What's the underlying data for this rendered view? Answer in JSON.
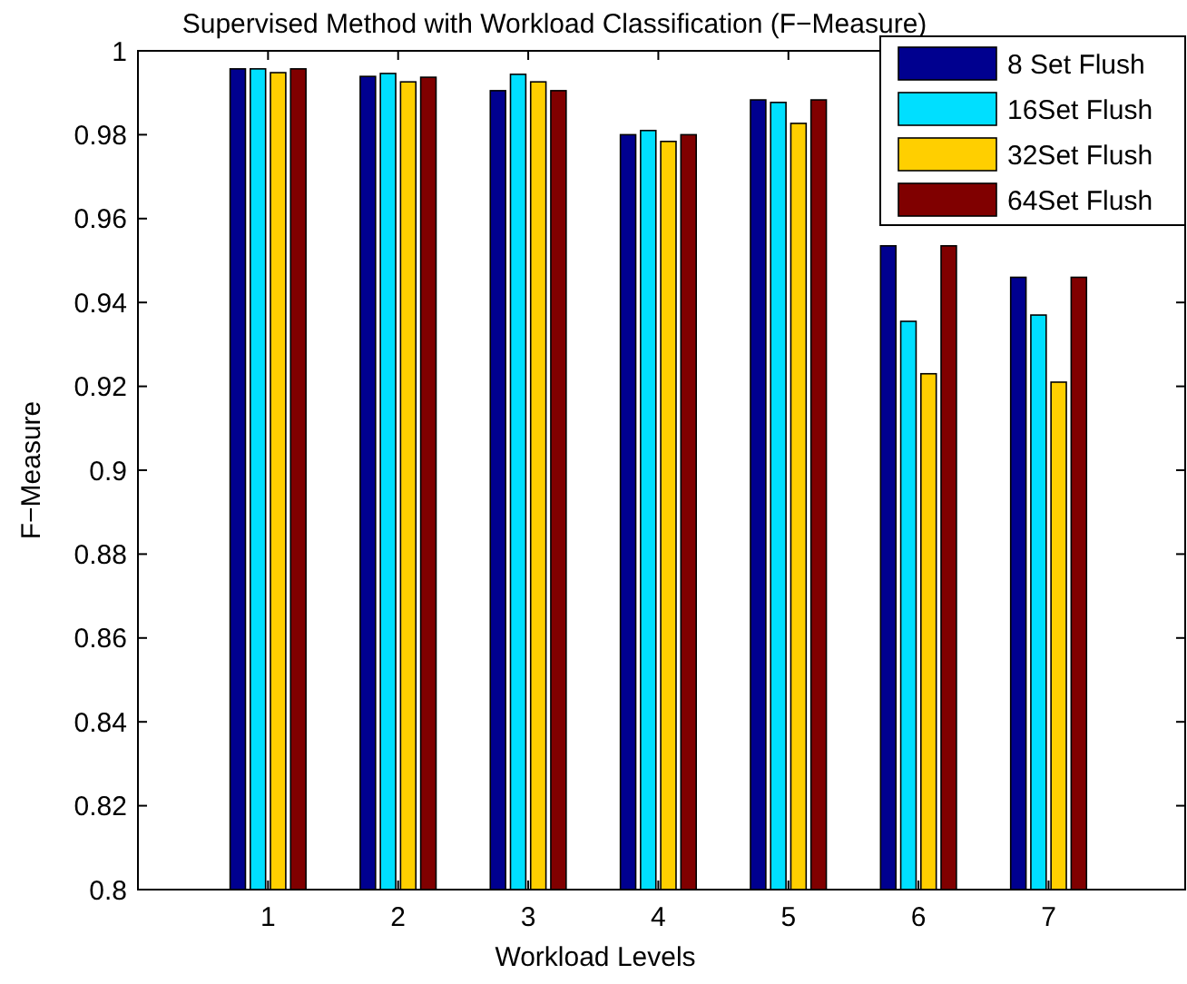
{
  "chart_data": {
    "type": "bar",
    "title": "Supervised Method with Workload Classification (F−Measure)",
    "xlabel": "Workload Levels",
    "ylabel": "F−Measure",
    "categories": [
      "1",
      "2",
      "3",
      "4",
      "5",
      "6",
      "7"
    ],
    "series": [
      {
        "name": "8 Set Flush",
        "color": "#00008f",
        "values": [
          0.9957,
          0.9939,
          0.9905,
          0.98,
          0.9883,
          0.9535,
          0.946
        ]
      },
      {
        "name": "16Set Flush",
        "color": "#00dfff",
        "values": [
          0.9957,
          0.9946,
          0.9944,
          0.981,
          0.9877,
          0.9355,
          0.937
        ]
      },
      {
        "name": "32Set Flush",
        "color": "#ffcf00",
        "values": [
          0.9948,
          0.9926,
          0.9926,
          0.9784,
          0.9827,
          0.923,
          0.921
        ]
      },
      {
        "name": "64Set Flush",
        "color": "#800000",
        "values": [
          0.9957,
          0.9937,
          0.9905,
          0.98,
          0.9883,
          0.9535,
          0.946
        ]
      }
    ],
    "ylim": [
      0.8,
      1
    ],
    "yticks": [
      0.8,
      0.82,
      0.84,
      0.86,
      0.88,
      0.9,
      0.92,
      0.94,
      0.96,
      0.98,
      1
    ],
    "legend": "top right",
    "grid": false
  }
}
